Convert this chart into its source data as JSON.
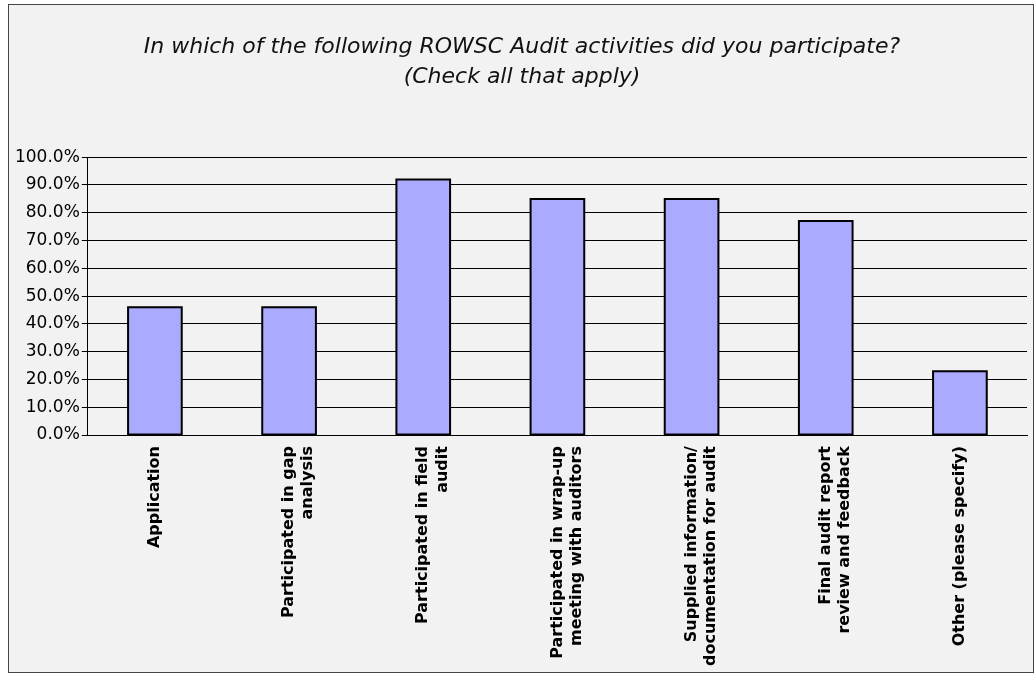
{
  "chart_data": {
    "type": "bar",
    "title": "In which of the following ROWSC Audit activities did you participate?\n(Check all that apply)",
    "categories": [
      "Application",
      "Participated in gap analysis",
      "Participated in field audit",
      "Participated in wrap-up meeting with auditors",
      "Supplied information/ documentation for audit",
      "Final audit report review and feedback",
      "Other (please specify)"
    ],
    "values": [
      46,
      46,
      92,
      85,
      85,
      77,
      23
    ],
    "color": "#aaaaff",
    "ylim": [
      0,
      100
    ],
    "yticks": [
      {
        "value": 0,
        "label": "0.0%"
      },
      {
        "value": 10,
        "label": "10.0%"
      },
      {
        "value": 20,
        "label": "20.0%"
      },
      {
        "value": 30,
        "label": "30.0%"
      },
      {
        "value": 40,
        "label": "40.0%"
      },
      {
        "value": 50,
        "label": "50.0%"
      },
      {
        "value": 60,
        "label": "60.0%"
      },
      {
        "value": 70,
        "label": "70.0%"
      },
      {
        "value": 80,
        "label": "80.0%"
      },
      {
        "value": 90,
        "label": "90.0%"
      },
      {
        "value": 100,
        "label": "100.0%"
      }
    ],
    "grid": "y",
    "legend": false
  }
}
